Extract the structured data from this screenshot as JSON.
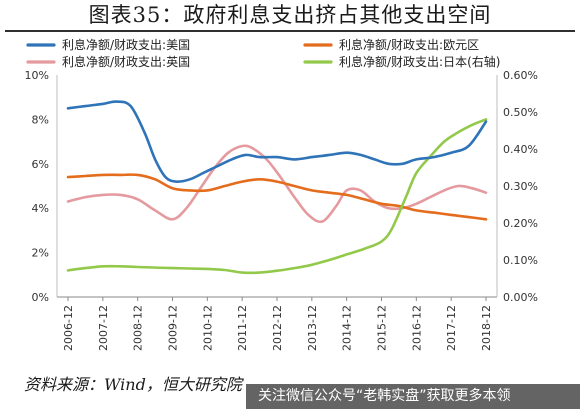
{
  "header": {
    "title": "图表35：政府利息支出挤占其他支出空间"
  },
  "footer": {
    "source": "资料来源：Wind，恒大研究院",
    "watermark": "关注微信公众号“老韩实盘”获取更多本领"
  },
  "chart_data": {
    "type": "line",
    "title": "图表35：政府利息支出挤占其他支出空间",
    "categories": [
      "2006-12",
      "2007-12",
      "2008-12",
      "2009-12",
      "2010-12",
      "2011-12",
      "2012-12",
      "2013-12",
      "2014-12",
      "2015-12",
      "2016-12",
      "2017-12",
      "2018-12"
    ],
    "x": [
      2006.9,
      2007.0,
      2007.4,
      2007.6,
      2007.8,
      2008.1,
      2008.3,
      2008.6,
      2008.9,
      2009.1,
      2009.3,
      2009.6,
      2009.9,
      2010.1,
      2010.4,
      2010.6,
      2010.9,
      2011.1,
      2011.4,
      2011.6,
      2011.9,
      2012.1,
      2012.4,
      2012.6,
      2012.9,
      2013.1,
      2013.4,
      2013.6,
      2013.9,
      2014.1,
      2014.4,
      2014.6,
      2014.9,
      2015.1,
      2015.4,
      2015.6,
      2015.9,
      2016.1,
      2016.4,
      2016.6,
      2016.9,
      2017.1,
      2017.4,
      2017.6,
      2017.9,
      2018.1,
      2018.4,
      2018.6,
      2018.9
    ],
    "y_left": {
      "ticks": [
        "0%",
        "2%",
        "4%",
        "6%",
        "8%",
        "10%"
      ],
      "ylim": [
        0,
        10
      ]
    },
    "y_right": {
      "ticks": [
        "0.00%",
        "0.10%",
        "0.20%",
        "0.30%",
        "0.40%",
        "0.50%",
        "0.60%"
      ],
      "ylim": [
        0,
        0.6
      ]
    },
    "grid": false,
    "legend_position": "top",
    "series": [
      {
        "name": "利息净额/财政支出:美国",
        "axis": "left",
        "color": "#2f73b8",
        "points": [
          [
            0.0,
            8.5
          ],
          [
            0.5,
            8.6
          ],
          [
            1.0,
            8.7
          ],
          [
            1.4,
            8.8
          ],
          [
            1.8,
            8.6
          ],
          [
            2.2,
            7.4
          ],
          [
            2.5,
            6.2
          ],
          [
            2.8,
            5.4
          ],
          [
            3.1,
            5.2
          ],
          [
            3.5,
            5.3
          ],
          [
            3.9,
            5.6
          ],
          [
            4.3,
            5.9
          ],
          [
            4.7,
            6.2
          ],
          [
            5.1,
            6.4
          ],
          [
            5.5,
            6.3
          ],
          [
            6.0,
            6.3
          ],
          [
            6.5,
            6.2
          ],
          [
            7.0,
            6.3
          ],
          [
            7.5,
            6.4
          ],
          [
            8.0,
            6.5
          ],
          [
            8.4,
            6.4
          ],
          [
            8.8,
            6.2
          ],
          [
            9.2,
            6.0
          ],
          [
            9.6,
            6.0
          ],
          [
            10.0,
            6.2
          ],
          [
            10.5,
            6.3
          ],
          [
            11.0,
            6.5
          ],
          [
            11.5,
            6.8
          ],
          [
            12.0,
            7.9
          ]
        ]
      },
      {
        "name": "利息净额/财政支出:欧元区",
        "axis": "left",
        "color": "#e46c1d",
        "points": [
          [
            0.0,
            5.4
          ],
          [
            0.5,
            5.45
          ],
          [
            1.0,
            5.5
          ],
          [
            1.5,
            5.5
          ],
          [
            2.0,
            5.5
          ],
          [
            2.5,
            5.3
          ],
          [
            3.0,
            4.9
          ],
          [
            3.5,
            4.8
          ],
          [
            4.0,
            4.8
          ],
          [
            4.5,
            5.0
          ],
          [
            5.0,
            5.2
          ],
          [
            5.5,
            5.3
          ],
          [
            6.0,
            5.2
          ],
          [
            6.5,
            5.0
          ],
          [
            7.0,
            4.8
          ],
          [
            7.5,
            4.7
          ],
          [
            8.0,
            4.6
          ],
          [
            8.5,
            4.4
          ],
          [
            9.0,
            4.2
          ],
          [
            9.5,
            4.1
          ],
          [
            10.0,
            3.9
          ],
          [
            10.5,
            3.8
          ],
          [
            11.0,
            3.7
          ],
          [
            11.5,
            3.6
          ],
          [
            12.0,
            3.5
          ]
        ]
      },
      {
        "name": "利息净额/财政支出:英国",
        "axis": "left",
        "color": "#e49a9e",
        "points": [
          [
            0.0,
            4.3
          ],
          [
            0.5,
            4.5
          ],
          [
            1.0,
            4.6
          ],
          [
            1.5,
            4.6
          ],
          [
            2.0,
            4.4
          ],
          [
            2.5,
            3.9
          ],
          [
            3.0,
            3.5
          ],
          [
            3.4,
            4.0
          ],
          [
            3.8,
            4.9
          ],
          [
            4.2,
            5.8
          ],
          [
            4.6,
            6.5
          ],
          [
            5.0,
            6.8
          ],
          [
            5.3,
            6.7
          ],
          [
            5.7,
            6.2
          ],
          [
            6.1,
            5.4
          ],
          [
            6.5,
            4.5
          ],
          [
            6.9,
            3.7
          ],
          [
            7.3,
            3.4
          ],
          [
            7.7,
            4.1
          ],
          [
            8.0,
            4.8
          ],
          [
            8.4,
            4.8
          ],
          [
            8.8,
            4.3
          ],
          [
            9.2,
            4.0
          ],
          [
            9.6,
            4.0
          ],
          [
            10.0,
            4.2
          ],
          [
            10.4,
            4.5
          ],
          [
            10.8,
            4.8
          ],
          [
            11.2,
            5.0
          ],
          [
            11.6,
            4.9
          ],
          [
            12.0,
            4.7
          ]
        ]
      },
      {
        "name": "利息净额/财政支出:日本(右轴)",
        "axis": "right",
        "color": "#92c94a",
        "points": [
          [
            0.0,
            0.072
          ],
          [
            0.5,
            0.078
          ],
          [
            1.0,
            0.083
          ],
          [
            1.5,
            0.083
          ],
          [
            2.0,
            0.081
          ],
          [
            3.0,
            0.078
          ],
          [
            4.0,
            0.076
          ],
          [
            4.5,
            0.073
          ],
          [
            5.0,
            0.066
          ],
          [
            5.5,
            0.066
          ],
          [
            6.0,
            0.071
          ],
          [
            6.5,
            0.078
          ],
          [
            7.0,
            0.087
          ],
          [
            7.5,
            0.1
          ],
          [
            8.0,
            0.115
          ],
          [
            8.5,
            0.13
          ],
          [
            9.0,
            0.15
          ],
          [
            9.3,
            0.185
          ],
          [
            9.7,
            0.27
          ],
          [
            10.0,
            0.335
          ],
          [
            10.4,
            0.38
          ],
          [
            10.8,
            0.42
          ],
          [
            11.2,
            0.445
          ],
          [
            11.6,
            0.465
          ],
          [
            12.0,
            0.48
          ]
        ]
      }
    ]
  }
}
